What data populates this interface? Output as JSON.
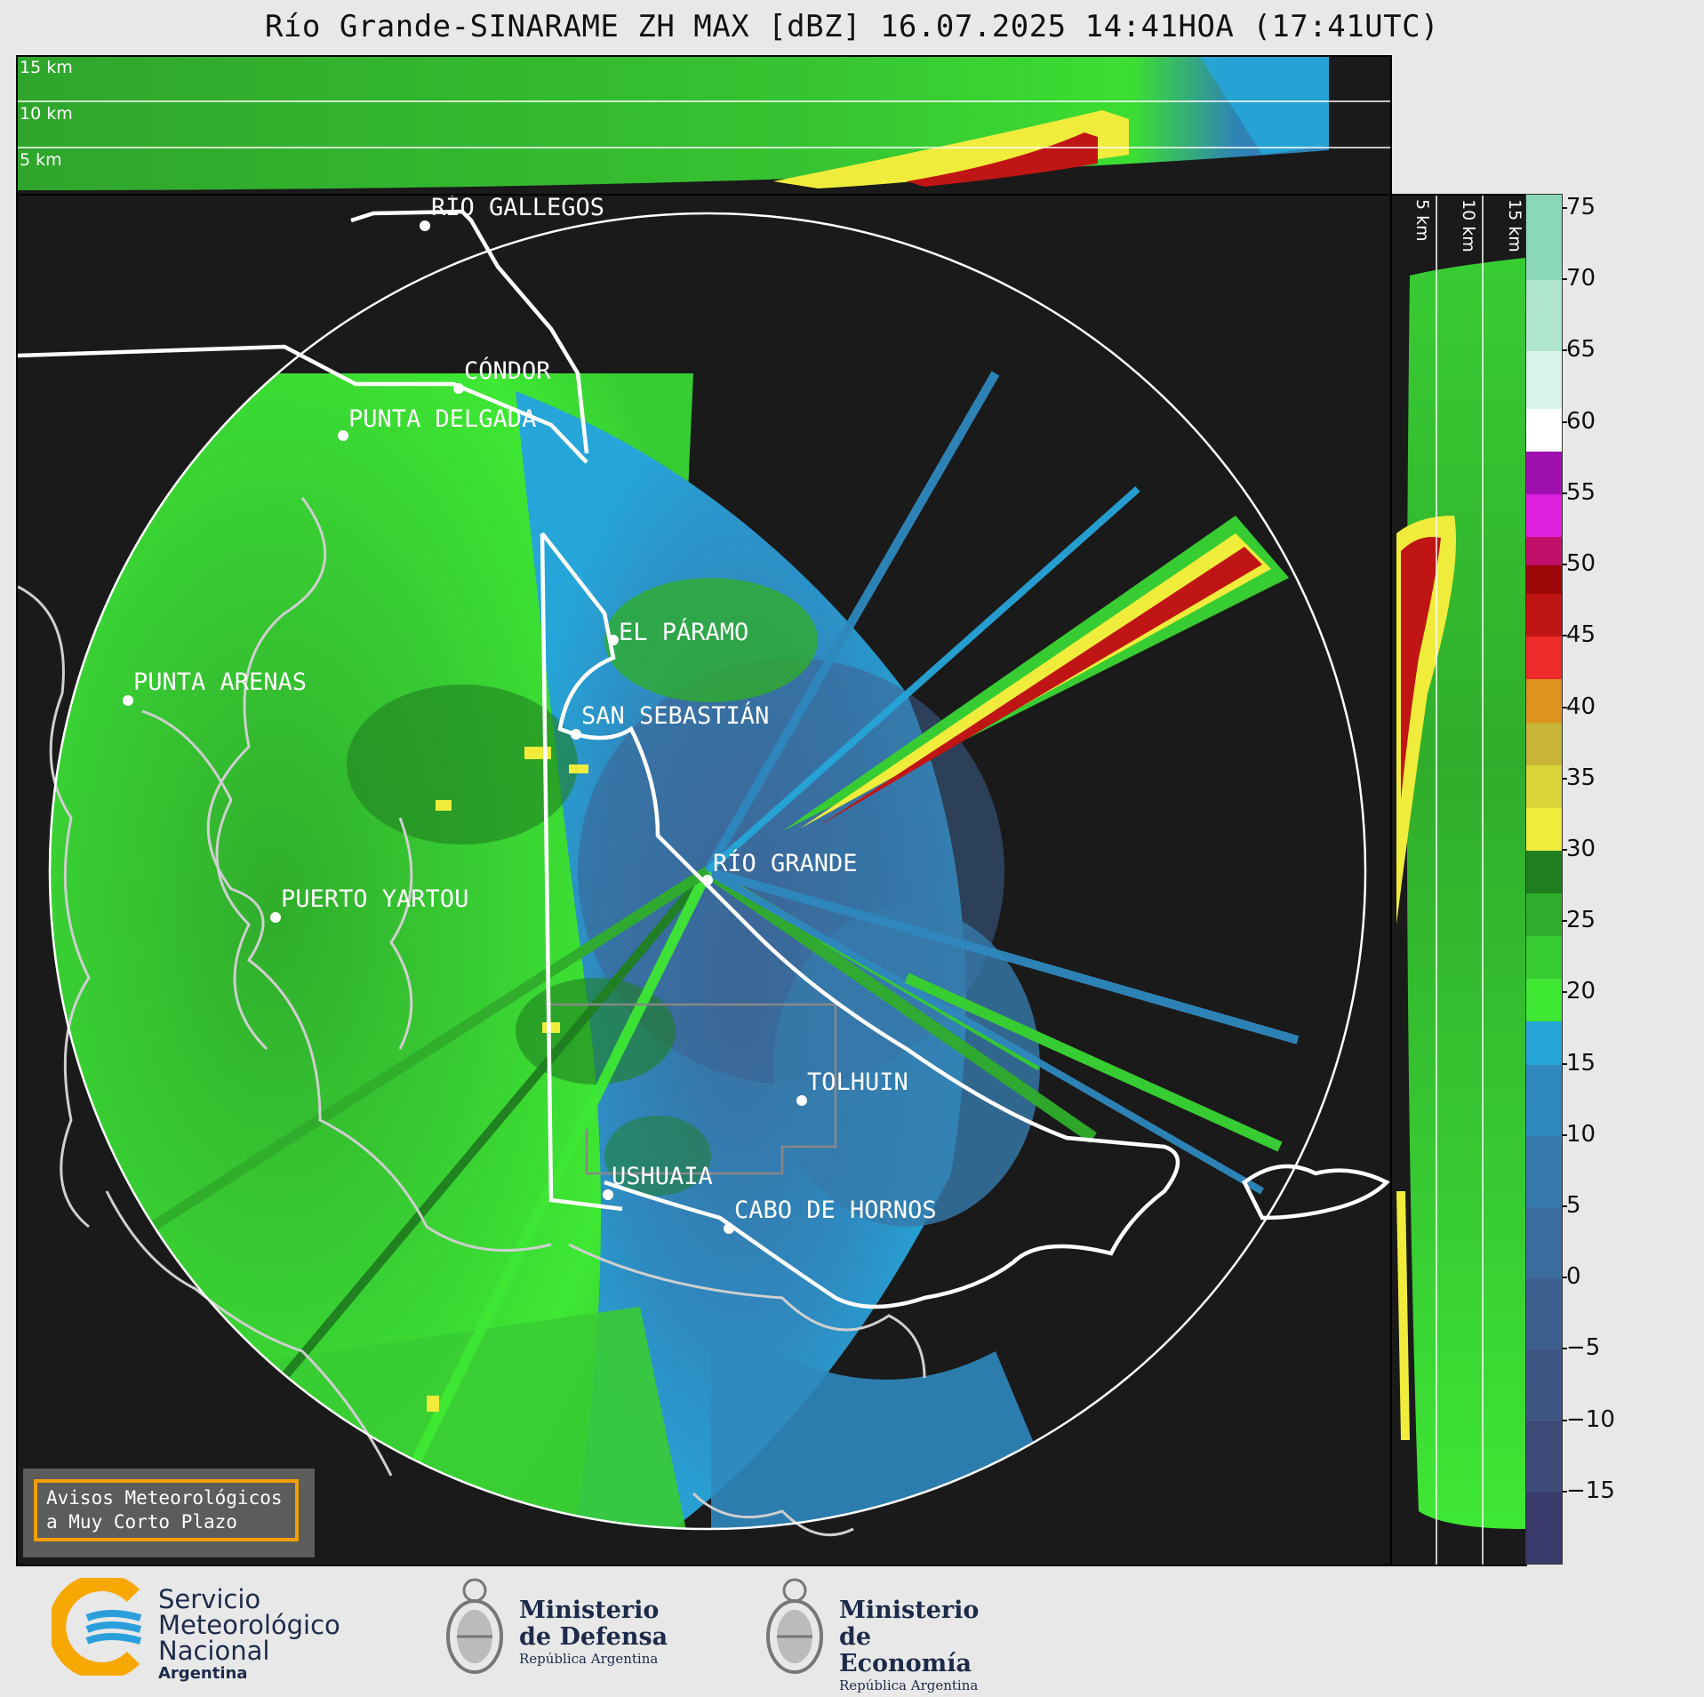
{
  "title": "Río Grande-SINARAME ZH MAX [dBZ] 16.07.2025 14:41HOA (17:41UTC)",
  "top_panel": {
    "height_labels": [
      "15 km",
      "10 km",
      "5 km"
    ]
  },
  "right_panel": {
    "height_labels": [
      "5 km",
      "10 km",
      "15 km"
    ]
  },
  "map": {
    "range_ring": "white circle",
    "cities": [
      {
        "name": "RÍO GALLEGOS"
      },
      {
        "name": "CÓNDOR"
      },
      {
        "name": "PUNTA DELGADA"
      },
      {
        "name": "PUNTA ARENAS"
      },
      {
        "name": "EL PÁRAMO"
      },
      {
        "name": "SAN SEBASTIÁN"
      },
      {
        "name": "RÍO GRANDE"
      },
      {
        "name": "PUERTO YARTOU"
      },
      {
        "name": "TOLHUIN"
      },
      {
        "name": "USHUAIA"
      },
      {
        "name": "CABO DE HORNOS"
      }
    ]
  },
  "colorbar": {
    "unit": "dBZ",
    "min": -20,
    "max": 76,
    "ticks": [
      "75",
      "70",
      "65",
      "60",
      "55",
      "50",
      "45",
      "40",
      "35",
      "30",
      "25",
      "20",
      "15",
      "10",
      "5",
      "0",
      "−5",
      "−10",
      "−15"
    ],
    "tick_values": [
      75,
      70,
      65,
      60,
      55,
      50,
      45,
      40,
      35,
      30,
      25,
      20,
      15,
      10,
      5,
      0,
      -5,
      -10,
      -15
    ],
    "bands": [
      {
        "from": -20,
        "to": -15,
        "color": "#3a3a6a"
      },
      {
        "from": -15,
        "to": -10,
        "color": "#3e4a78"
      },
      {
        "from": -10,
        "to": -5,
        "color": "#3f5584"
      },
      {
        "from": -5,
        "to": 0,
        "color": "#3e6090"
      },
      {
        "from": 0,
        "to": 5,
        "color": "#3b6d9e"
      },
      {
        "from": 5,
        "to": 10,
        "color": "#367aab"
      },
      {
        "from": 10,
        "to": 15,
        "color": "#2f88be"
      },
      {
        "from": 15,
        "to": 18,
        "color": "#26a5d8"
      },
      {
        "from": 18,
        "to": 21,
        "color": "#3ee833"
      },
      {
        "from": 21,
        "to": 24,
        "color": "#38cc33"
      },
      {
        "from": 24,
        "to": 27,
        "color": "#30ad2c"
      },
      {
        "from": 27,
        "to": 30,
        "color": "#1f7f1f"
      },
      {
        "from": 30,
        "to": 33,
        "color": "#f0ec3c"
      },
      {
        "from": 33,
        "to": 36,
        "color": "#d9d43a"
      },
      {
        "from": 36,
        "to": 39,
        "color": "#c8b436"
      },
      {
        "from": 39,
        "to": 42,
        "color": "#e0921e"
      },
      {
        "from": 42,
        "to": 45,
        "color": "#ee2a2a"
      },
      {
        "from": 45,
        "to": 48,
        "color": "#c01515"
      },
      {
        "from": 48,
        "to": 50,
        "color": "#9c0808"
      },
      {
        "from": 50,
        "to": 52,
        "color": "#c0106a"
      },
      {
        "from": 52,
        "to": 55,
        "color": "#e020e0"
      },
      {
        "from": 55,
        "to": 58,
        "color": "#a010b0"
      },
      {
        "from": 58,
        "to": 61,
        "color": "#ffffff"
      },
      {
        "from": 61,
        "to": 65,
        "color": "#d8f3ea"
      },
      {
        "from": 65,
        "to": 70,
        "color": "#b0e6cf"
      },
      {
        "from": 70,
        "to": 76,
        "color": "#8ad8b8"
      }
    ]
  },
  "notice": {
    "line1": "Avisos Meteorológicos",
    "line2": "a Muy Corto Plazo"
  },
  "logos": {
    "smn": {
      "line1": "Servicio",
      "line2": "Meteorológico",
      "line3": "Nacional",
      "line4": "Argentina"
    },
    "defensa": {
      "line1": "Ministerio",
      "line2": "de Defensa",
      "line3": "República Argentina"
    },
    "economia": {
      "line1": "Ministerio",
      "line2": "de Economía",
      "line3": "República Argentina"
    }
  },
  "colors": {
    "panel_bg": "#1a1a1a",
    "page_bg": "#e8e8e8",
    "green": "#38cc33",
    "blue": "#2f88be",
    "yellow": "#f0ec3c",
    "red": "#c01515",
    "notice_border": "#f29f05"
  }
}
